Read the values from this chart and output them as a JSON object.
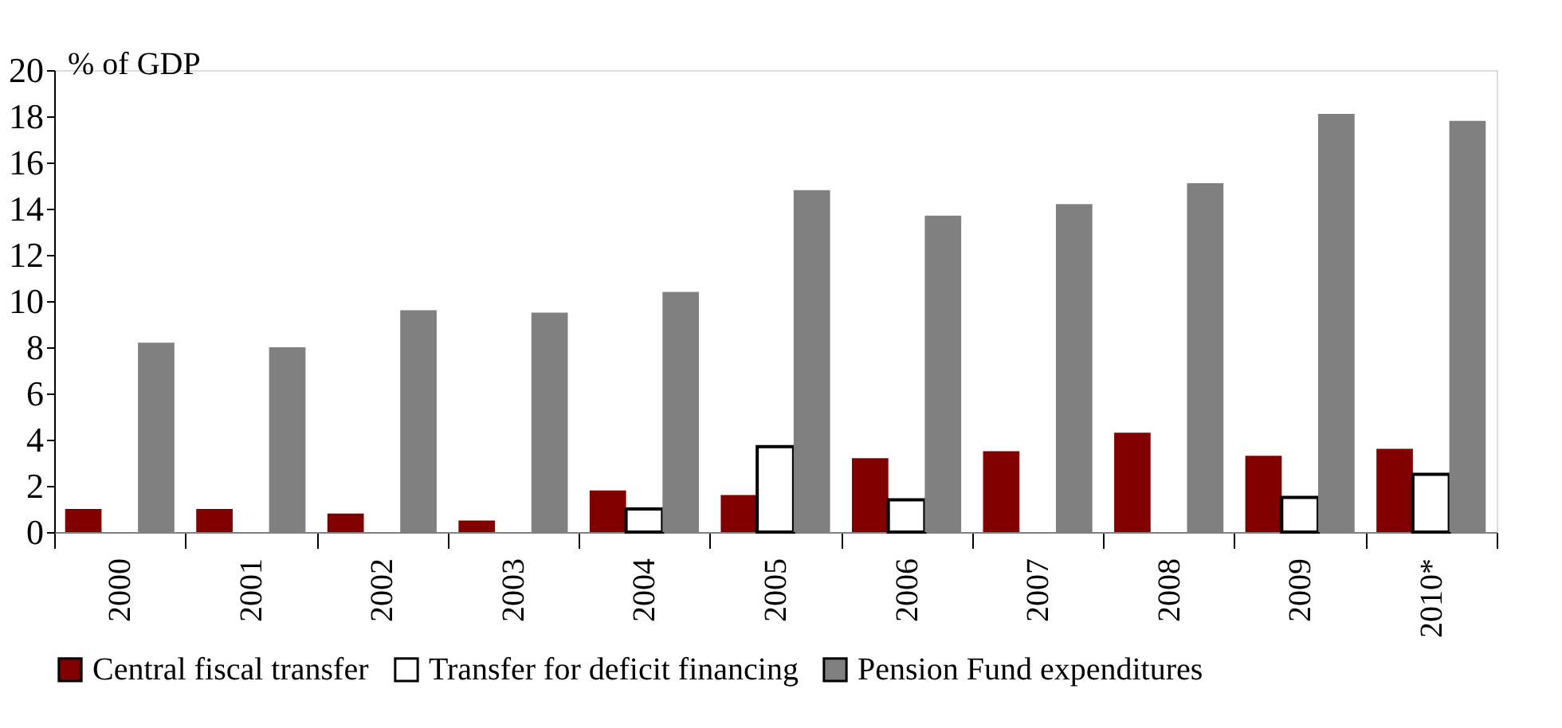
{
  "chart_data": {
    "type": "bar",
    "ylabel": "% of GDP",
    "categories": [
      "2000",
      "2001",
      "2002",
      "2003",
      "2004",
      "2005",
      "2006",
      "2007",
      "2008",
      "2009",
      "2010*"
    ],
    "series": [
      {
        "name": "Central fiscal transfer",
        "color": "#800000",
        "values": [
          1.0,
          1.0,
          0.8,
          0.5,
          1.8,
          1.6,
          3.2,
          3.5,
          4.3,
          3.3,
          3.6
        ]
      },
      {
        "name": "Transfer for deficit financing",
        "color": "#ffffff",
        "values": [
          null,
          null,
          null,
          null,
          1.0,
          3.7,
          1.4,
          null,
          null,
          1.5,
          2.5
        ]
      },
      {
        "name": "Pension Fund expenditures",
        "color": "#808080",
        "values": [
          8.2,
          8.0,
          9.6,
          9.5,
          10.4,
          14.8,
          13.7,
          14.2,
          15.1,
          18.1,
          17.8
        ]
      }
    ],
    "ylim": [
      0,
      20
    ],
    "yticks": [
      0,
      2,
      4,
      6,
      8,
      10,
      12,
      14,
      16,
      18,
      20
    ],
    "grid": false,
    "legend": "bottom"
  }
}
